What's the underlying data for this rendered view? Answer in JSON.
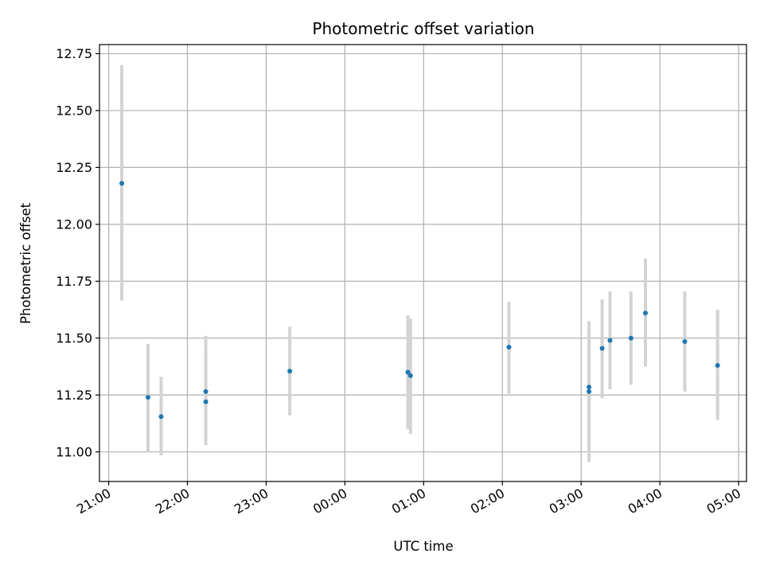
{
  "chart_data": {
    "type": "scatter",
    "title": "Photometric offset variation",
    "xlabel": "UTC time",
    "ylabel": "Photometric offset",
    "x_axis_type": "time",
    "x_range": [
      "20:53",
      "05:06"
    ],
    "x_ticks": [
      "21:00",
      "22:00",
      "23:00",
      "00:00",
      "01:00",
      "02:00",
      "03:00",
      "04:00",
      "05:00"
    ],
    "ylim": [
      10.87,
      12.79
    ],
    "y_ticks": [
      "11.00",
      "11.25",
      "11.50",
      "11.75",
      "12.00",
      "12.25",
      "12.50",
      "12.75"
    ],
    "grid": true,
    "legend": "none",
    "marker_color": "#1f77b4",
    "errorbar_color": "#d3d3d3",
    "points": [
      {
        "time": "21:10",
        "y": 12.18,
        "yerr_low": 11.665,
        "yerr_high": 12.7
      },
      {
        "time": "21:30",
        "y": 11.24,
        "yerr_low": 11.0,
        "yerr_high": 11.475
      },
      {
        "time": "21:40",
        "y": 11.155,
        "yerr_low": 10.985,
        "yerr_high": 11.33
      },
      {
        "time": "22:14",
        "y": 11.265,
        "yerr_low": 11.03,
        "yerr_high": 11.51
      },
      {
        "time": "22:14",
        "y": 11.22,
        "yerr_low": 11.03,
        "yerr_high": 11.415
      },
      {
        "time": "23:18",
        "y": 11.355,
        "yerr_low": 11.16,
        "yerr_high": 11.55
      },
      {
        "time": "00:48",
        "y": 11.35,
        "yerr_low": 11.1,
        "yerr_high": 11.6
      },
      {
        "time": "00:50",
        "y": 11.335,
        "yerr_low": 11.08,
        "yerr_high": 11.585
      },
      {
        "time": "02:05",
        "y": 11.46,
        "yerr_low": 11.255,
        "yerr_high": 11.66
      },
      {
        "time": "03:06",
        "y": 11.265,
        "yerr_low": 10.955,
        "yerr_high": 11.575
      },
      {
        "time": "03:06",
        "y": 11.285,
        "yerr_low": 11.02,
        "yerr_high": 11.55
      },
      {
        "time": "03:16",
        "y": 11.455,
        "yerr_low": 11.235,
        "yerr_high": 11.67
      },
      {
        "time": "03:22",
        "y": 11.49,
        "yerr_low": 11.275,
        "yerr_high": 11.705
      },
      {
        "time": "03:38",
        "y": 11.5,
        "yerr_low": 11.295,
        "yerr_high": 11.705
      },
      {
        "time": "03:49",
        "y": 11.61,
        "yerr_low": 11.375,
        "yerr_high": 11.85
      },
      {
        "time": "04:19",
        "y": 11.485,
        "yerr_low": 11.265,
        "yerr_high": 11.705
      },
      {
        "time": "04:44",
        "y": 11.38,
        "yerr_low": 11.14,
        "yerr_high": 11.625
      }
    ]
  }
}
